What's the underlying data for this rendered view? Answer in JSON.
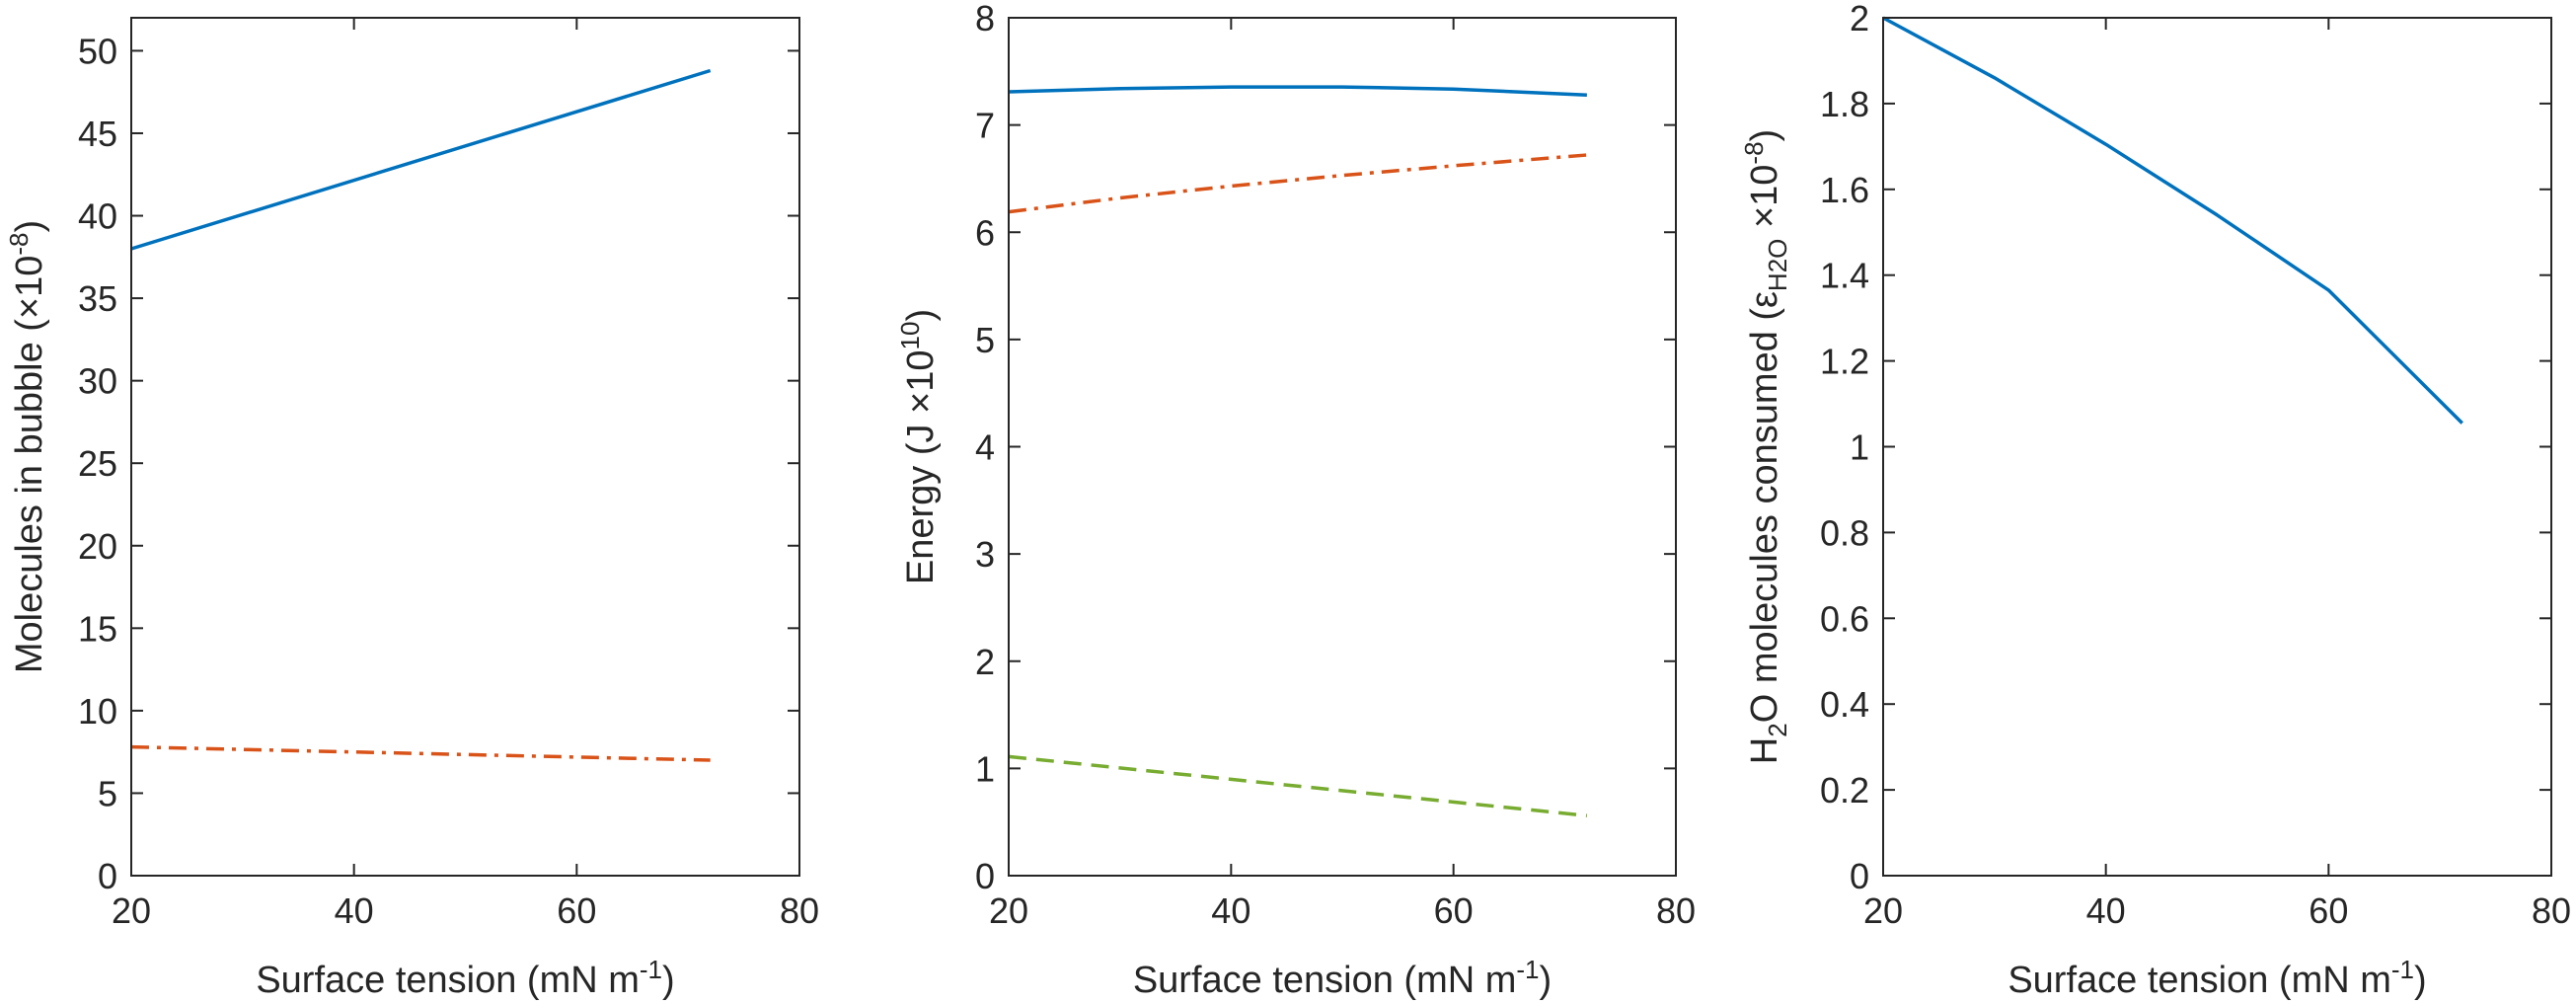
{
  "chart_data": [
    {
      "type": "line",
      "xlabel": "Surface tension (mN m-1)",
      "xlabel_parts": {
        "main": "Surface tension (mN m",
        "sup": "-1",
        "close": ")"
      },
      "ylabel": "Molecules in bubble (×10-8)",
      "ylabel_parts": {
        "main": "Molecules in bubble (×10",
        "sup": "-8",
        "close": ")"
      },
      "xlim": [
        20,
        80
      ],
      "ylim": [
        0,
        52
      ],
      "xticks": [
        20,
        40,
        60,
        80
      ],
      "xtick_labels": [
        "20",
        "40",
        "60",
        "80"
      ],
      "yticks": [
        0,
        5,
        10,
        15,
        20,
        25,
        30,
        35,
        40,
        45,
        50
      ],
      "ytick_labels": [
        "0",
        "5",
        "10",
        "15",
        "20",
        "25",
        "30",
        "35",
        "40",
        "45",
        "50"
      ],
      "grid": false,
      "series": [
        {
          "style": "solid",
          "color": "#0072BD",
          "x": [
            20,
            72
          ],
          "y": [
            38.0,
            48.8
          ]
        },
        {
          "style": "dashdot",
          "color": "#D95319",
          "x": [
            20,
            72
          ],
          "y": [
            7.8,
            7.0
          ]
        }
      ]
    },
    {
      "type": "line",
      "xlabel": "Surface tension (mN m-1)",
      "xlabel_parts": {
        "main": "Surface tension (mN m",
        "sup": "-1",
        "close": ")"
      },
      "ylabel": "Energy (J ×1010)",
      "ylabel_parts": {
        "main": "Energy (J ×10",
        "sup": "10",
        "close": ")"
      },
      "xlim": [
        20,
        80
      ],
      "ylim": [
        0,
        8
      ],
      "xticks": [
        20,
        40,
        60,
        80
      ],
      "xtick_labels": [
        "20",
        "40",
        "60",
        "80"
      ],
      "yticks": [
        0,
        1,
        2,
        3,
        4,
        5,
        6,
        7,
        8
      ],
      "ytick_labels": [
        "0",
        "1",
        "2",
        "3",
        "4",
        "5",
        "6",
        "7",
        "8"
      ],
      "grid": false,
      "series": [
        {
          "style": "solid",
          "color": "#0072BD",
          "x": [
            20,
            30,
            40,
            50,
            60,
            72
          ],
          "y": [
            7.31,
            7.34,
            7.355,
            7.355,
            7.335,
            7.28
          ]
        },
        {
          "style": "dashdot",
          "color": "#D95319",
          "x": [
            20,
            30,
            40,
            50,
            60,
            72
          ],
          "y": [
            6.19,
            6.32,
            6.43,
            6.53,
            6.62,
            6.72
          ]
        },
        {
          "style": "dashed",
          "color": "#77AC30",
          "x": [
            20,
            72
          ],
          "y": [
            1.11,
            0.56
          ]
        }
      ]
    },
    {
      "type": "line",
      "xlabel": "Surface tension (mN m-1)",
      "xlabel_parts": {
        "main": "Surface tension (mN m",
        "sup": "-1",
        "close": ")"
      },
      "ylabel": "H2O molecules consumed (εH2O ×10-8)",
      "ylabel_parts": {
        "h": "H",
        "sub2": "2",
        "mid": "O molecules consumed (",
        "eps": "ε",
        "sub_h2o": "H2O",
        "rest": " ×10",
        "sup": "-8",
        "close": ")"
      },
      "xlim": [
        20,
        80
      ],
      "ylim": [
        0,
        2
      ],
      "xticks": [
        20,
        40,
        60,
        80
      ],
      "xtick_labels": [
        "20",
        "40",
        "60",
        "80"
      ],
      "yticks": [
        0,
        0.2,
        0.4,
        0.6,
        0.8,
        1.0,
        1.2,
        1.4,
        1.6,
        1.8,
        2.0
      ],
      "ytick_labels": [
        "0",
        "0.2",
        "0.4",
        "0.6",
        "0.8",
        "1",
        "1.2",
        "1.4",
        "1.6",
        "1.8",
        "2"
      ],
      "grid": false,
      "series": [
        {
          "style": "solid",
          "color": "#0072BD",
          "x": [
            20,
            30,
            40,
            50,
            60,
            72
          ],
          "y": [
            2.0,
            1.86,
            1.705,
            1.54,
            1.365,
            1.055
          ]
        }
      ]
    }
  ]
}
